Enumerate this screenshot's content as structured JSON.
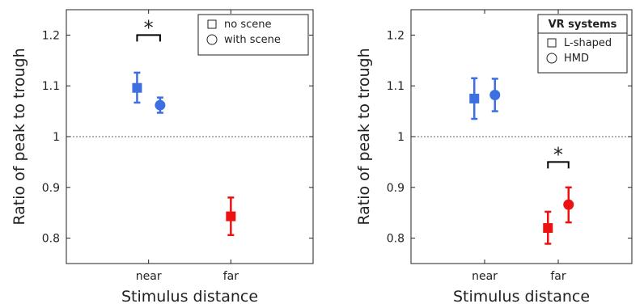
{
  "colors": {
    "near": "#3d6fe0",
    "far": "#ee1111",
    "axis": "#222222",
    "ref": "#666666"
  },
  "chart_data": [
    {
      "type": "scatter",
      "xlabel": "Stimulus distance",
      "ylabel": "Ratio of peak to trough",
      "ylim": [
        0.75,
        1.25
      ],
      "yticks": [
        0.8,
        0.9,
        1.0,
        1.1,
        1.2
      ],
      "ytick_labels": [
        "0.8",
        "0.9",
        "1",
        "1.1",
        "1.2"
      ],
      "categories": [
        "near",
        "far"
      ],
      "reference_line": 1.0,
      "legend": {
        "title": "",
        "placement": "top-right",
        "entries": [
          {
            "marker": "square",
            "label": "no scene"
          },
          {
            "marker": "circle",
            "label": "with scene"
          }
        ]
      },
      "points": [
        {
          "category": "near",
          "marker": "square",
          "offset": -0.14,
          "y": 1.096,
          "low": 1.067,
          "high": 1.126,
          "color": "near"
        },
        {
          "category": "near",
          "marker": "circle",
          "offset": 0.14,
          "y": 1.062,
          "low": 1.047,
          "high": 1.077,
          "color": "near"
        },
        {
          "category": "far",
          "marker": "square",
          "offset": 0.0,
          "y": 0.843,
          "low": 0.806,
          "high": 0.88,
          "color": "far"
        }
      ],
      "annotations": [
        {
          "category": "near",
          "y": 1.2,
          "text": "*"
        }
      ]
    },
    {
      "type": "scatter",
      "xlabel": "Stimulus distance",
      "ylabel": "Ratio of peak to trough",
      "ylim": [
        0.75,
        1.25
      ],
      "yticks": [
        0.8,
        0.9,
        1.0,
        1.1,
        1.2
      ],
      "ytick_labels": [
        "0.8",
        "0.9",
        "1",
        "1.1",
        "1.2"
      ],
      "categories": [
        "near",
        "far"
      ],
      "reference_line": 1.0,
      "legend": {
        "title": "VR systems",
        "placement": "top-right",
        "entries": [
          {
            "marker": "square",
            "label": "L-shaped"
          },
          {
            "marker": "circle",
            "label": "HMD"
          }
        ]
      },
      "points": [
        {
          "category": "near",
          "marker": "square",
          "offset": -0.14,
          "y": 1.075,
          "low": 1.035,
          "high": 1.115,
          "color": "near"
        },
        {
          "category": "near",
          "marker": "circle",
          "offset": 0.14,
          "y": 1.082,
          "low": 1.05,
          "high": 1.114,
          "color": "near"
        },
        {
          "category": "far",
          "marker": "square",
          "offset": -0.14,
          "y": 0.82,
          "low": 0.789,
          "high": 0.852,
          "color": "far"
        },
        {
          "category": "far",
          "marker": "circle",
          "offset": 0.14,
          "y": 0.866,
          "low": 0.831,
          "high": 0.9,
          "color": "far"
        }
      ],
      "annotations": [
        {
          "category": "far",
          "y": 0.95,
          "text": "*"
        }
      ]
    }
  ]
}
